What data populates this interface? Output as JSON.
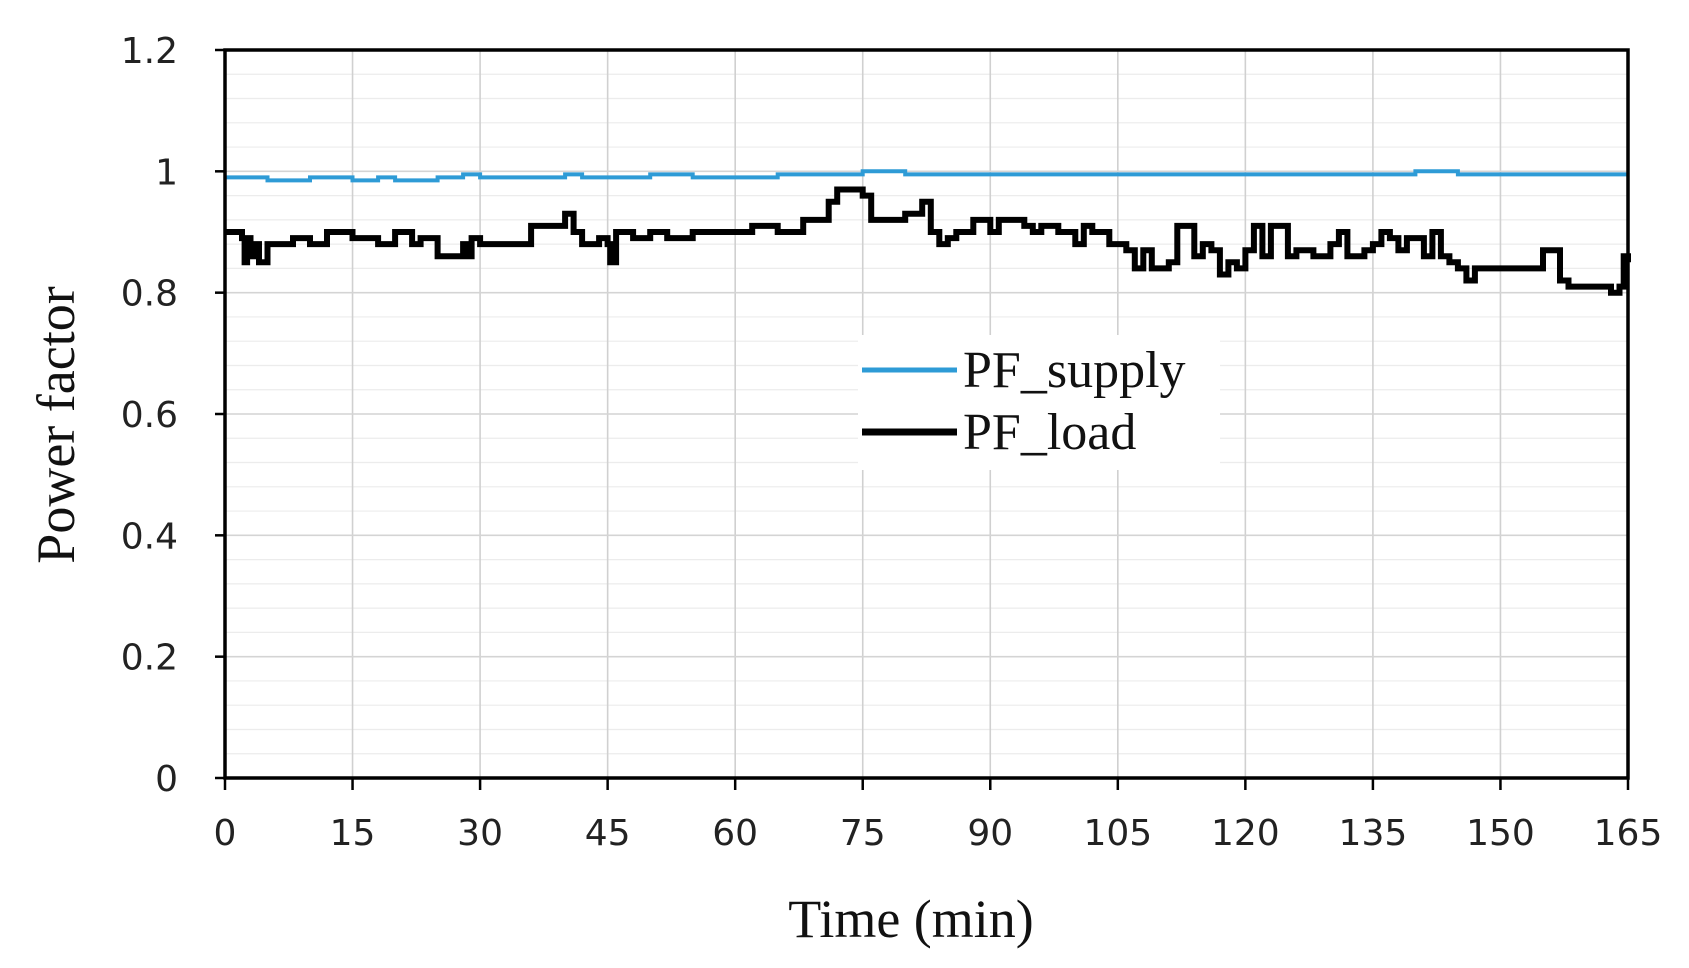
{
  "chart_data": {
    "type": "line",
    "title": "",
    "xlabel": "Time (min)",
    "ylabel": "Power factor",
    "xlim": [
      0,
      165
    ],
    "ylim": [
      0,
      1.2
    ],
    "grid": true,
    "legend_position": "center",
    "x_ticks": [
      "0",
      "15",
      "30",
      "45",
      "60",
      "75",
      "90",
      "105",
      "120",
      "135",
      "150",
      "165"
    ],
    "y_ticks": [
      "0",
      "0.2",
      "0.4",
      "0.6",
      "0.8",
      "1",
      "1.2"
    ],
    "x_tick_values": [
      0,
      15,
      30,
      45,
      60,
      75,
      90,
      105,
      120,
      135,
      150,
      165
    ],
    "y_tick_values": [
      0,
      0.2,
      0.4,
      0.6,
      0.8,
      1.0,
      1.2
    ],
    "series": [
      {
        "name": "PF_supply",
        "color": "#2e9bd6",
        "x": [
          0,
          2,
          5,
          10,
          15,
          18,
          20,
          25,
          28,
          30,
          35,
          40,
          42,
          45,
          50,
          55,
          60,
          65,
          70,
          75,
          80,
          85,
          90,
          95,
          100,
          105,
          110,
          115,
          120,
          125,
          130,
          135,
          140,
          145,
          150,
          155,
          160,
          165
        ],
        "values": [
          0.99,
          0.99,
          0.985,
          0.99,
          0.985,
          0.99,
          0.985,
          0.99,
          0.995,
          0.99,
          0.99,
          0.995,
          0.99,
          0.99,
          0.995,
          0.99,
          0.99,
          0.995,
          0.995,
          1.0,
          0.995,
          0.995,
          0.995,
          0.995,
          0.995,
          0.995,
          0.995,
          0.995,
          0.995,
          0.995,
          0.995,
          0.995,
          1.0,
          0.995,
          0.995,
          0.995,
          0.995,
          0.995
        ]
      },
      {
        "name": "PF_load",
        "color": "#000000",
        "x": [
          0,
          2,
          2.3,
          2.6,
          3,
          3.5,
          4,
          5,
          8,
          10,
          12,
          15,
          18,
          20,
          22,
          23,
          25,
          28,
          28.5,
          29,
          30,
          32,
          35,
          36,
          38,
          40,
          41,
          42,
          44,
          45,
          45.3,
          46,
          48,
          50,
          52,
          55,
          58,
          60,
          62,
          65,
          66,
          68,
          70,
          71,
          72,
          74,
          75,
          76,
          78,
          80,
          82,
          83,
          84,
          85,
          86,
          88,
          89,
          90,
          91,
          92,
          94,
          95,
          96,
          98,
          100,
          101,
          102,
          104,
          105,
          106,
          107,
          108,
          109,
          110,
          111,
          112,
          113,
          114,
          115,
          116,
          117,
          118,
          119,
          120,
          121,
          122,
          123,
          124,
          125,
          126,
          128,
          130,
          131,
          132,
          134,
          135,
          136,
          137,
          138,
          139,
          140,
          141,
          142,
          143,
          144,
          145,
          146,
          147,
          148,
          150,
          152,
          154,
          155,
          156,
          157,
          158,
          160,
          162,
          163,
          164,
          164.5,
          165
        ],
        "values": [
          0.9,
          0.89,
          0.85,
          0.89,
          0.86,
          0.88,
          0.85,
          0.88,
          0.89,
          0.88,
          0.9,
          0.89,
          0.88,
          0.9,
          0.88,
          0.89,
          0.86,
          0.88,
          0.86,
          0.89,
          0.88,
          0.88,
          0.88,
          0.91,
          0.91,
          0.93,
          0.9,
          0.88,
          0.89,
          0.88,
          0.85,
          0.9,
          0.89,
          0.9,
          0.89,
          0.9,
          0.9,
          0.9,
          0.91,
          0.9,
          0.9,
          0.92,
          0.92,
          0.95,
          0.97,
          0.97,
          0.96,
          0.92,
          0.92,
          0.93,
          0.95,
          0.9,
          0.88,
          0.89,
          0.9,
          0.92,
          0.92,
          0.9,
          0.92,
          0.92,
          0.91,
          0.9,
          0.91,
          0.9,
          0.88,
          0.91,
          0.9,
          0.88,
          0.88,
          0.87,
          0.84,
          0.87,
          0.84,
          0.84,
          0.85,
          0.91,
          0.91,
          0.86,
          0.88,
          0.87,
          0.83,
          0.85,
          0.84,
          0.87,
          0.91,
          0.86,
          0.91,
          0.91,
          0.86,
          0.87,
          0.86,
          0.88,
          0.9,
          0.86,
          0.87,
          0.88,
          0.9,
          0.89,
          0.87,
          0.89,
          0.89,
          0.86,
          0.9,
          0.86,
          0.85,
          0.84,
          0.82,
          0.84,
          0.84,
          0.84,
          0.84,
          0.84,
          0.87,
          0.87,
          0.82,
          0.81,
          0.81,
          0.81,
          0.8,
          0.81,
          0.86,
          0.85
        ]
      }
    ]
  }
}
